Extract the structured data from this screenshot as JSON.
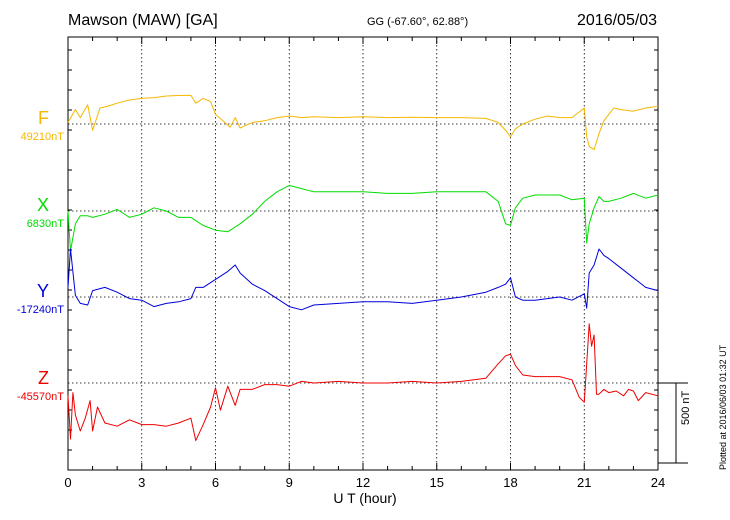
{
  "header": {
    "title": "Mawson (MAW)  [GA]",
    "coords": "GG (-67.60°,  62.88°)",
    "date": "2016/05/03"
  },
  "footer": {
    "plotted": "Plotted at 2016/06/03 01:32 UT"
  },
  "chart_data": {
    "type": "line",
    "xlabel": "U T (hour)",
    "xlim": [
      0,
      24
    ],
    "xticks": [
      "0",
      "3",
      "6",
      "9",
      "12",
      "15",
      "18",
      "21",
      "24"
    ],
    "grid": true,
    "scale_bar": "500 nT",
    "series": [
      {
        "name": "F",
        "baseline_label": "49210nT",
        "color": "#f5b700",
        "x": [
          0,
          0.3,
          0.5,
          0.8,
          1,
          1.3,
          1.6,
          2,
          2.5,
          3,
          3.5,
          4,
          4.5,
          5,
          5.2,
          5.5,
          5.8,
          6,
          6.3,
          6.6,
          6.8,
          7,
          7.5,
          8,
          8.5,
          9,
          9.5,
          10,
          11,
          12,
          13,
          14,
          15,
          16,
          17,
          17.5,
          17.8,
          18,
          18.2,
          18.5,
          19,
          19.5,
          20,
          20.5,
          21,
          21.1,
          21.2,
          21.4,
          21.6,
          21.8,
          22,
          22.2,
          22.5,
          23,
          23.5,
          24
        ],
        "y": [
          10,
          90,
          40,
          120,
          -40,
          100,
          110,
          130,
          150,
          160,
          165,
          175,
          178,
          180,
          130,
          160,
          140,
          60,
          20,
          -20,
          40,
          -25,
          10,
          20,
          40,
          50,
          40,
          45,
          40,
          45,
          40,
          42,
          40,
          40,
          35,
          10,
          -40,
          -80,
          -30,
          0,
          30,
          50,
          40,
          40,
          100,
          -80,
          -140,
          -160,
          -60,
          20,
          60,
          100,
          90,
          80,
          100,
          110
        ]
      },
      {
        "name": "X",
        "baseline_label": "6830nT",
        "color": "#00dd00",
        "x": [
          0,
          0.1,
          0.3,
          0.5,
          0.8,
          1,
          1.5,
          2,
          2.5,
          3,
          3.5,
          4,
          4.5,
          5,
          5.5,
          6,
          6.5,
          7,
          7.5,
          8,
          8.5,
          9,
          9.5,
          10,
          11,
          12,
          13,
          14,
          15,
          16,
          17,
          17.5,
          17.8,
          18,
          18.2,
          18.5,
          19,
          20,
          20.5,
          21,
          21.1,
          21.2,
          21.4,
          21.6,
          21.8,
          22,
          22.5,
          23,
          23.5,
          24
        ],
        "y": [
          0,
          -250,
          -80,
          -30,
          -30,
          -40,
          -20,
          10,
          -40,
          -20,
          20,
          0,
          -40,
          -40,
          -90,
          -120,
          -130,
          -80,
          -20,
          60,
          120,
          160,
          140,
          120,
          120,
          120,
          110,
          110,
          120,
          120,
          120,
          60,
          -80,
          -90,
          20,
          80,
          100,
          100,
          70,
          80,
          -200,
          -80,
          20,
          90,
          60,
          60,
          80,
          110,
          80,
          100
        ]
      },
      {
        "name": "Y",
        "baseline_label": "-17240nT",
        "color": "#0000dd",
        "x": [
          0,
          0.1,
          0.3,
          0.5,
          0.8,
          1,
          1.5,
          2,
          2.5,
          3,
          3.5,
          4,
          4.5,
          5,
          5.2,
          5.5,
          6,
          6.5,
          6.8,
          7,
          7.5,
          8,
          8.5,
          9,
          9.5,
          10,
          11,
          12,
          13,
          14,
          15,
          16,
          17,
          17.5,
          17.8,
          18,
          18.2,
          18.5,
          19,
          20,
          20.5,
          21,
          21.1,
          21.2,
          21.4,
          21.6,
          21.8,
          22,
          22.5,
          23,
          23.5,
          24
        ],
        "y": [
          60,
          300,
          10,
          -40,
          -50,
          40,
          60,
          30,
          -10,
          -20,
          -60,
          -40,
          -30,
          -10,
          60,
          60,
          110,
          160,
          200,
          150,
          80,
          40,
          -10,
          -60,
          -80,
          -50,
          -40,
          -30,
          -30,
          -40,
          -20,
          0,
          30,
          60,
          80,
          120,
          0,
          -20,
          -20,
          0,
          -20,
          20,
          -70,
          150,
          200,
          300,
          260,
          240,
          180,
          120,
          60,
          40
        ]
      },
      {
        "name": "Z",
        "baseline_label": "-45570nT",
        "color": "#ee0000",
        "x": [
          0,
          0.1,
          0.2,
          0.3,
          0.5,
          0.7,
          0.9,
          1,
          1.2,
          1.5,
          2,
          2.5,
          3,
          3.5,
          4,
          4.5,
          5,
          5.2,
          5.5,
          5.8,
          6,
          6.2,
          6.5,
          6.8,
          7,
          7.5,
          8,
          8.5,
          9,
          9.5,
          10,
          11,
          12,
          13,
          14,
          15,
          16,
          17,
          17.5,
          17.8,
          18,
          18.2,
          18.5,
          19,
          19.5,
          20,
          20.5,
          20.8,
          21,
          21.2,
          21.3,
          21.4,
          21.5,
          21.6,
          21.8,
          22,
          22.3,
          22.6,
          22.8,
          23,
          23.2,
          23.5,
          24
        ],
        "y": [
          -80,
          -350,
          -60,
          -200,
          -300,
          -220,
          -110,
          -300,
          -150,
          -250,
          -270,
          -230,
          -260,
          -260,
          -270,
          -250,
          -220,
          -360,
          -260,
          -150,
          -30,
          -170,
          -20,
          -140,
          -40,
          -40,
          -10,
          -10,
          -20,
          10,
          0,
          10,
          0,
          0,
          10,
          0,
          10,
          30,
          120,
          170,
          180,
          110,
          50,
          40,
          40,
          40,
          20,
          -90,
          -120,
          370,
          230,
          300,
          -70,
          -70,
          -40,
          -60,
          -50,
          -80,
          -40,
          -50,
          -110,
          -60,
          -80
        ]
      }
    ]
  }
}
